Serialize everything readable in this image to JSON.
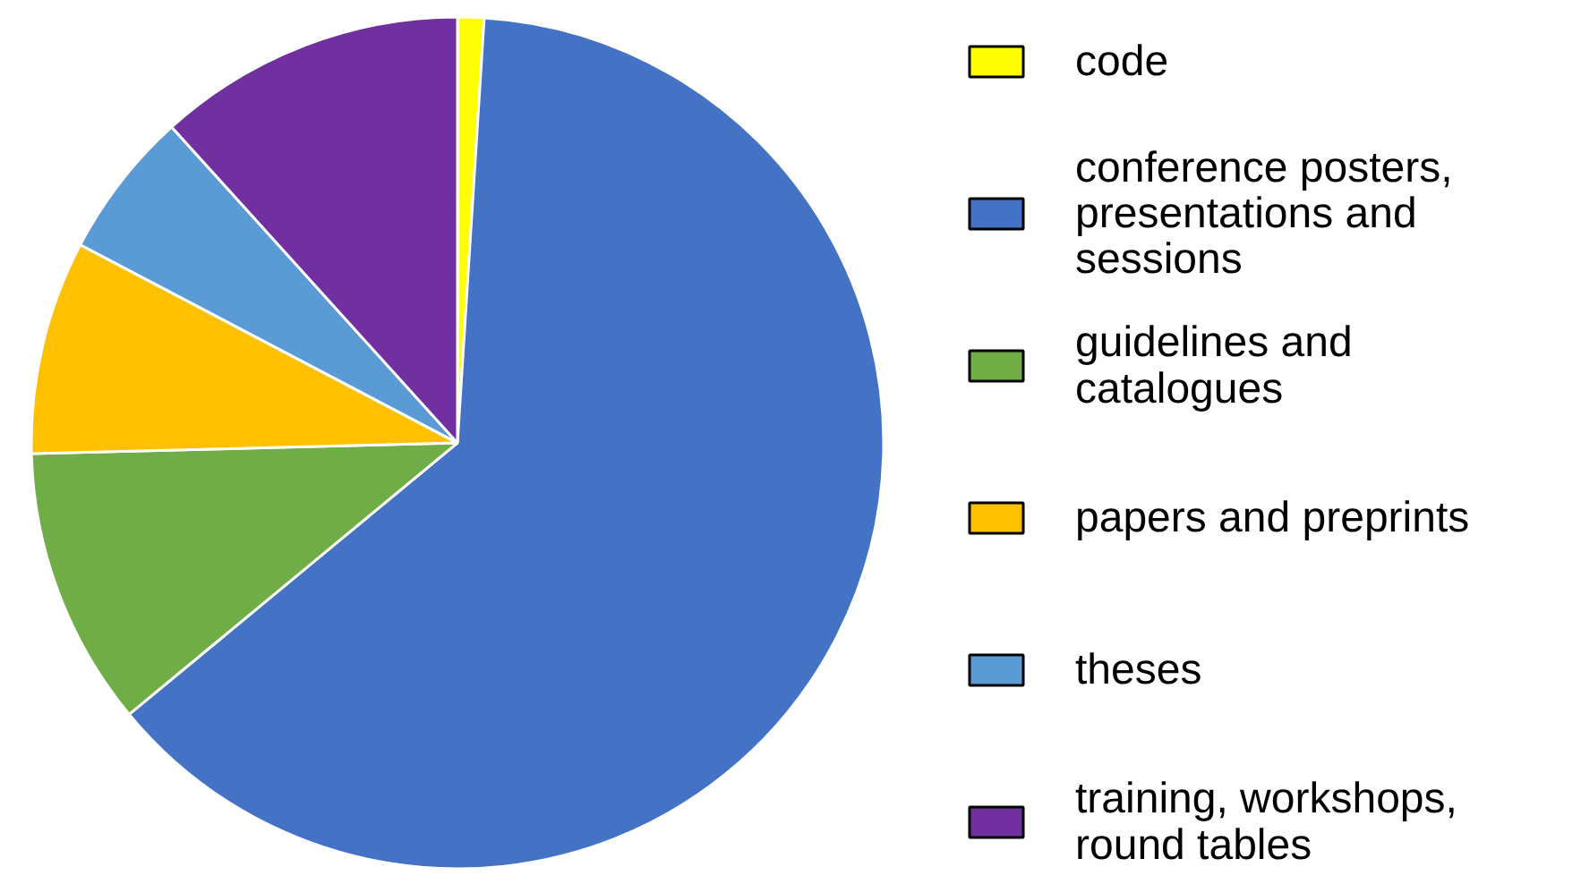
{
  "chart_data": {
    "type": "pie",
    "categories": [
      "code",
      "conference posters, presentations and sessions",
      "guidelines and catalogues",
      "papers and preprints",
      "theses",
      "training, workshops, round tables"
    ],
    "values": [
      1,
      63,
      10.6,
      8.1,
      5.6,
      11.7
    ],
    "colors": [
      "#ffff00",
      "#4472c4",
      "#70ad47",
      "#ffc000",
      "#5b9bd5",
      "#7030a0"
    ],
    "legend": "right"
  }
}
